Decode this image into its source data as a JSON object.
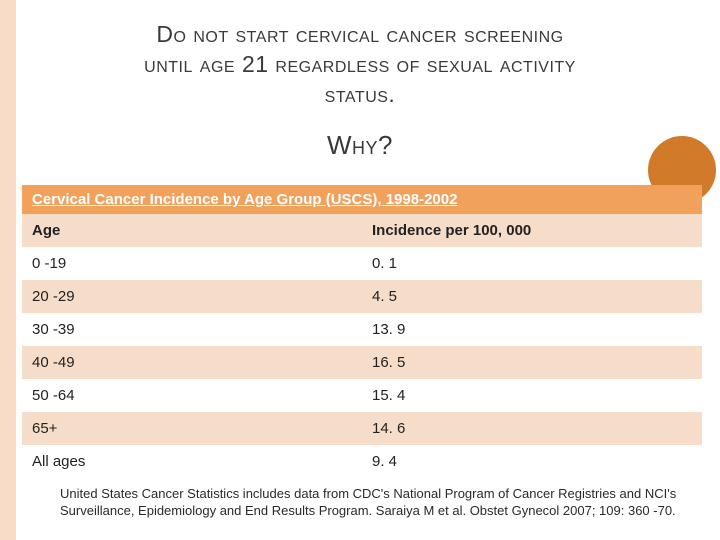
{
  "title_line1": "Do not start cervical cancer screening",
  "title_line2": "until age 21 regardless of sexual activity",
  "title_line3": "status.",
  "why": "Why?",
  "table": {
    "title": "Cervical Cancer Incidence by Age Group (USCS), 1998-2002",
    "columns": [
      "Age",
      "Incidence per 100, 000"
    ],
    "rows": [
      [
        "0 -19",
        "0. 1"
      ],
      [
        "20 -29",
        "4. 5"
      ],
      [
        "30 -39",
        "13. 9"
      ],
      [
        "40 -49",
        "16. 5"
      ],
      [
        "50 -64",
        "15. 4"
      ],
      [
        "65+",
        "14. 6"
      ],
      [
        "All ages",
        "9. 4"
      ]
    ],
    "title_bg": "#f1a15c",
    "title_fg": "#ffffff",
    "row_alt_bg": "#f6ddc9",
    "row_bg": "#ffffff"
  },
  "footnote": "United States Cancer Statistics includes data from CDC's National Program of Cancer Registries and NCI's Surveillance, Epidemiology and End Results Program. Saraiya M et al. Obstet Gynecol 2007; 109: 360 -70.",
  "accent_circle_color": "#d07a2a",
  "side_accent_color": "#f8dcc8"
}
